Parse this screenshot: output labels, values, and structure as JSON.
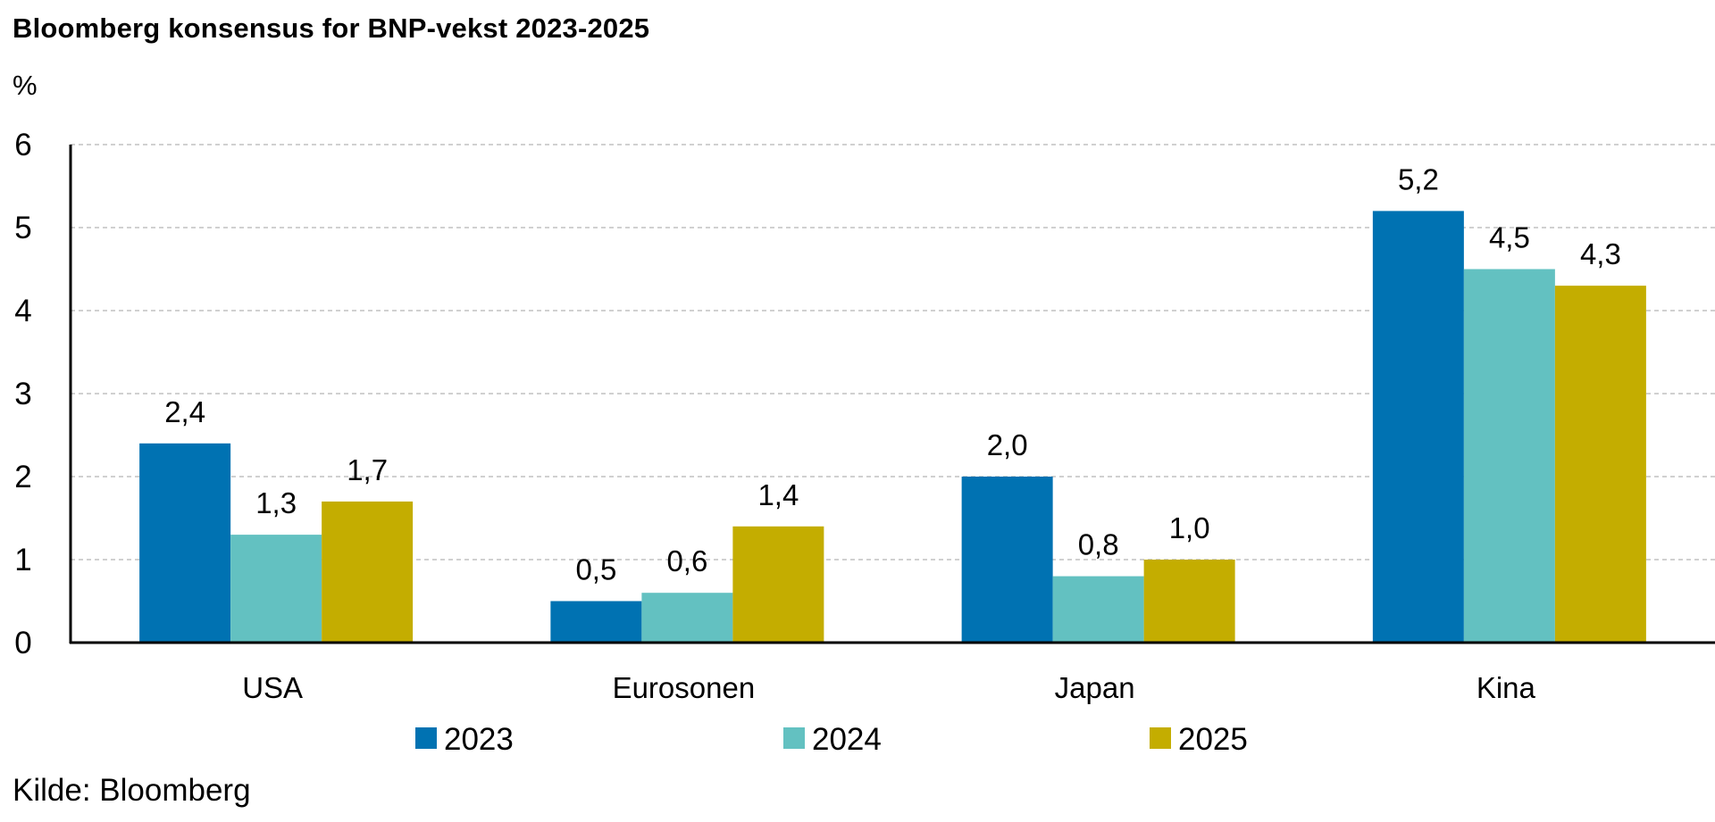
{
  "chart_data": {
    "type": "bar",
    "title": "Bloomberg konsensus for BNP-vekst 2023-2025",
    "ylabel": "%",
    "xlabel": "",
    "categories": [
      "USA",
      "Eurosonen",
      "Japan",
      "Kina"
    ],
    "series": [
      {
        "name": "2023",
        "color": "#0072b2",
        "values": [
          2.4,
          0.5,
          2.0,
          5.2
        ],
        "labels": [
          "2,4",
          "0,5",
          "2,0",
          "5,2"
        ]
      },
      {
        "name": "2024",
        "color": "#63c1c1",
        "values": [
          1.3,
          0.6,
          0.8,
          4.5
        ],
        "labels": [
          "1,3",
          "0,6",
          "0,8",
          "4,5"
        ]
      },
      {
        "name": "2025",
        "color": "#c4ad00",
        "values": [
          1.7,
          1.4,
          1.0,
          4.3
        ],
        "labels": [
          "1,7",
          "1,4",
          "1,0",
          "4,3"
        ]
      }
    ],
    "ylim": [
      0,
      6
    ],
    "yticks": [
      0,
      1,
      2,
      3,
      4,
      5,
      6
    ],
    "ytick_labels": [
      "0",
      "1",
      "2",
      "3",
      "4",
      "5",
      "6"
    ],
    "grid": true,
    "legend_position": "bottom",
    "source": "Kilde: Bloomberg"
  }
}
